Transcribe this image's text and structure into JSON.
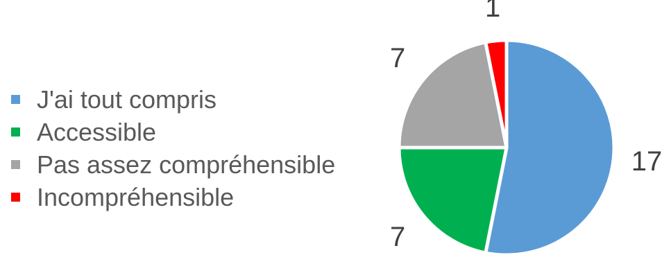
{
  "chart_data": {
    "type": "pie",
    "title": "",
    "legend_position": "left",
    "categories": [
      "J'ai tout compris",
      "Accessible",
      "Pas assez compréhensible",
      "Incompréhensible"
    ],
    "values": [
      17,
      7,
      7,
      1
    ],
    "labels": [
      "17",
      "7",
      "7",
      "1"
    ],
    "colors": [
      "#5b9bd5",
      "#00b050",
      "#a5a5a5",
      "#ff0000"
    ],
    "start_angle_deg": 0,
    "direction": "clockwise",
    "slice_border_color": "#ffffff"
  }
}
